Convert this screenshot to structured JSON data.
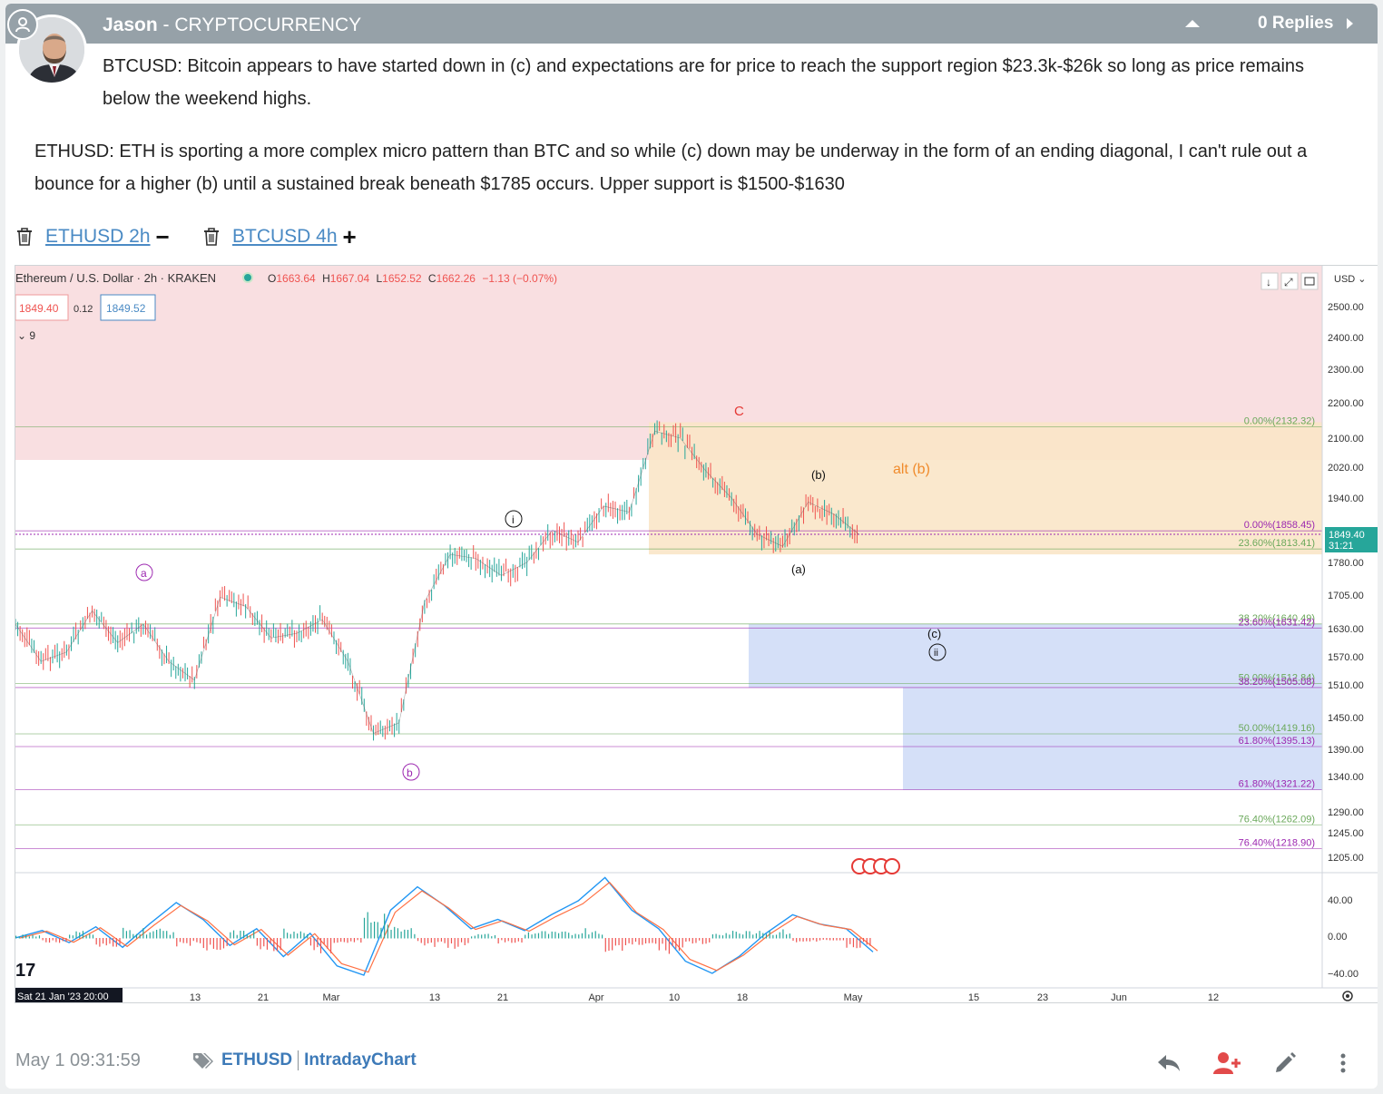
{
  "post": {
    "author": "Jason",
    "separator": " - ",
    "category": "CRYPTOCURRENCY",
    "replies": "0 Replies",
    "paragraph1": "BTCUSD: Bitcoin appears to have started down in (c) and expectations are for price to reach the support region $23.3k-$26k so long as price remains below the weekend highs.",
    "paragraph2": "ETHUSD: ETH is sporting a more complex micro pattern than BTC and so while (c) down may be underway in the form of an ending diagonal, I can't rule out a bounce for a higher (b) until a sustained break beneath $1785 occurs. Upper support is $1500-$1630"
  },
  "chart_tabs": [
    {
      "label": "ETHUSD 2h",
      "toggle": "−"
    },
    {
      "label": "BTCUSD 4h",
      "toggle": "+"
    }
  ],
  "footer": {
    "timestamp": "May 1 09:31:59",
    "tags": [
      "ETHUSD",
      "IntradayChart"
    ]
  },
  "colors": {
    "header": "#96a1a8",
    "link": "#4a8ac4",
    "up": "#26a69a",
    "down": "#ef5350",
    "pink_zone": "#f9dfe1",
    "orange_zone": "#fae5c8",
    "blue_zone": "#d5e0f8"
  },
  "icons": {
    "collapse": "caret-up-icon",
    "replies": "caret-right-icon",
    "tab_delete": "trash-icon",
    "reply": "reply-icon",
    "follow": "user-plus-icon",
    "edit": "pencil-icon",
    "more": "vertical-dots-icon",
    "settings": "gear-icon"
  },
  "chart": {
    "legend_title": "Ethereum / U.S. Dollar · 2h · KRAKEN",
    "ohlc": {
      "o": "1663.64",
      "h": "1667.04",
      "l": "1652.52",
      "c": "1662.26",
      "chg": "−1.13 (−0.07%)"
    },
    "bid": "1849.40",
    "spread": "0.12",
    "ask": "1849.52",
    "indicators_count": "9",
    "currency": "USD",
    "last_price": "1849.40",
    "countdown": "31:21",
    "x_start_label": "Sat 21 Jan '23   20:00",
    "tv_logo": "17",
    "wave_labels": {
      "a": "a",
      "b": "b",
      "i": "i",
      "C": "C",
      "b_paren": "(b)",
      "a_paren": "(a)",
      "alt_b": "alt (b)",
      "c_paren": "(c)",
      "ii": "ii"
    }
  },
  "chart_data": {
    "type": "line",
    "title": "Ethereum / U.S. Dollar · 2h · KRAKEN",
    "y_axis_ticks": [
      "2500.00",
      "2400.00",
      "2300.00",
      "2200.00",
      "2100.00",
      "2020.00",
      "1940.00",
      "1780.00",
      "1705.00",
      "1630.00",
      "1570.00",
      "1510.00",
      "1450.00",
      "1390.00",
      "1340.00",
      "1290.00",
      "1245.00",
      "1205.00"
    ],
    "x_axis_ticks": [
      "13",
      "21",
      "Mar",
      "13",
      "21",
      "Apr",
      "10",
      "18",
      "May",
      "15",
      "23",
      "Jun",
      "12"
    ],
    "oscillator_ticks": [
      "40.00",
      "0.00",
      "−40.00"
    ],
    "ylim": [
      1180,
      2560
    ],
    "series": [
      {
        "name": "ETHUSD",
        "x": [
          "Jan 21",
          "Jan 25",
          "Jan 29",
          "Feb 2",
          "Feb 6",
          "Feb 10",
          "Feb 14",
          "Feb 16",
          "Feb 19",
          "Feb 22",
          "Feb 25",
          "Mar 1",
          "Mar 5",
          "Mar 8",
          "Mar 10",
          "Mar 12",
          "Mar 14",
          "Mar 18",
          "Mar 22",
          "Mar 25",
          "Mar 29",
          "Apr 2",
          "Apr 5",
          "Apr 8",
          "Apr 11",
          "Apr 13",
          "Apr 16",
          "Apr 18",
          "Apr 20",
          "Apr 23",
          "Apr 26",
          "Apr 28",
          "Apr 30",
          "May 1"
        ],
        "values": [
          1640,
          1560,
          1580,
          1670,
          1600,
          1640,
          1560,
          1520,
          1700,
          1680,
          1610,
          1620,
          1650,
          1560,
          1420,
          1440,
          1690,
          1800,
          1790,
          1750,
          1780,
          1860,
          1830,
          1920,
          1905,
          2120,
          2100,
          2010,
          1940,
          1850,
          1820,
          1930,
          1900,
          1849
        ]
      }
    ],
    "fib_levels": [
      {
        "label": "0.00%(2132.32)",
        "value": 2132.32
      },
      {
        "label": "0.00%(1858.45)",
        "value": 1858.45
      },
      {
        "label": "23.60%(1813.41)",
        "value": 1813.41
      },
      {
        "label": "38.20%(1640.49)",
        "value": 1640.49
      },
      {
        "label": "23.60%(1631.42)",
        "value": 1631.42
      },
      {
        "label": "50.00%(1512.84)",
        "value": 1512.84
      },
      {
        "label": "38.20%(1505.08)",
        "value": 1505.08
      },
      {
        "label": "50.00%(1419.16)",
        "value": 1419.16
      },
      {
        "label": "61.80%(1395.13)",
        "value": 1395.13
      },
      {
        "label": "61.80%(1321.22)",
        "value": 1321.22
      },
      {
        "label": "76.40%(1262.09)",
        "value": 1262.09
      },
      {
        "label": "76.40%(1218.90)",
        "value": 1218.9
      }
    ],
    "zones": [
      {
        "name": "resistance",
        "from": 2040,
        "to": 2560
      },
      {
        "name": "orange",
        "from": 1800,
        "to": 2145
      },
      {
        "name": "support-upper",
        "from": 1505,
        "to": 1640
      },
      {
        "name": "support-lower",
        "from": 1321,
        "to": 1505
      }
    ],
    "grid": false
  }
}
